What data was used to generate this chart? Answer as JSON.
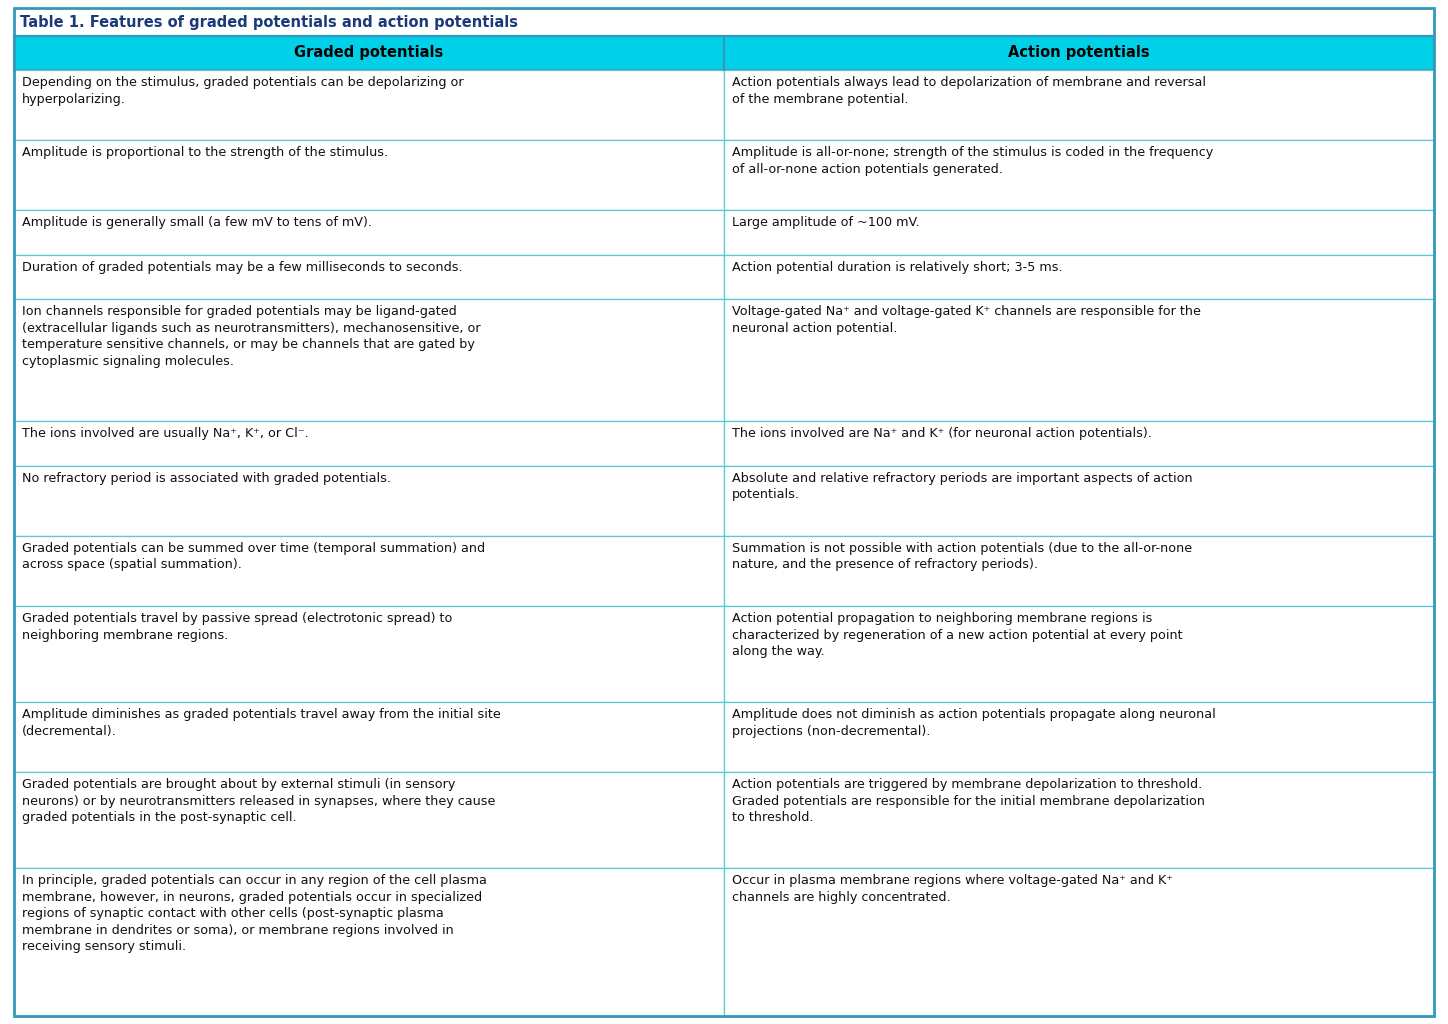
{
  "title": "Table 1. Features of graded potentials and action potentials",
  "col1_header": "Graded potentials",
  "col2_header": "Action potentials",
  "rows": [
    [
      "Depending on the stimulus, graded potentials can be depolarizing or\nhyperpolarizing.",
      "Action potentials always lead to depolarization of membrane and reversal\nof the membrane potential."
    ],
    [
      "Amplitude is proportional to the strength of the stimulus.",
      "Amplitude is all-or-none; strength of the stimulus is coded in the frequency\nof all-or-none action potentials generated."
    ],
    [
      "Amplitude is generally small (a few mV to tens of mV).",
      "Large amplitude of ~100 mV."
    ],
    [
      "Duration of graded potentials may be a few milliseconds to seconds.",
      "Action potential duration is relatively short; 3-5 ms."
    ],
    [
      "Ion channels responsible for graded potentials may be ligand-gated\n(extracellular ligands such as neurotransmitters), mechanosensitive, or\ntemperature sensitive channels, or may be channels that are gated by\ncytoplasmic signaling molecules.",
      "Voltage-gated Na⁺ and voltage-gated K⁺ channels are responsible for the\nneuronal action potential."
    ],
    [
      "The ions involved are usually Na⁺, K⁺, or Cl⁻.",
      "The ions involved are Na⁺ and K⁺ (for neuronal action potentials)."
    ],
    [
      "No refractory period is associated with graded potentials.",
      "Absolute and relative refractory periods are important aspects of action\npotentials."
    ],
    [
      "Graded potentials can be summed over time (temporal summation) and\nacross space (spatial summation).",
      "Summation is not possible with action potentials (due to the all-or-none\nnature, and the presence of refractory periods)."
    ],
    [
      "Graded potentials travel by passive spread (electrotonic spread) to\nneighboring membrane regions.",
      "Action potential propagation to neighboring membrane regions is\ncharacterized by regeneration of a new action potential at every point\nalong the way."
    ],
    [
      "Amplitude diminishes as graded potentials travel away from the initial site\n(decremental).",
      "Amplitude does not diminish as action potentials propagate along neuronal\nprojections (non-decremental)."
    ],
    [
      "Graded potentials are brought about by external stimuli (in sensory\nneurons) or by neurotransmitters released in synapses, where they cause\ngraded potentials in the post-synaptic cell.",
      "Action potentials are triggered by membrane depolarization to threshold.\nGraded potentials are responsible for the initial membrane depolarization\nto threshold."
    ],
    [
      "In principle, graded potentials can occur in any region of the cell plasma\nmembrane, however, in neurons, graded potentials occur in specialized\nregions of synaptic contact with other cells (post-synaptic plasma\nmembrane in dendrites or soma), or membrane regions involved in\nreceiving sensory stimuli.",
      "Occur in plasma membrane regions where voltage-gated Na⁺ and K⁺\nchannels are highly concentrated."
    ]
  ],
  "title_color": "#1a3a7a",
  "title_bg": "#ffffff",
  "header_bg": "#00d0e8",
  "header_text_color": "#000000",
  "row_bg_even": "#ffffff",
  "row_bg_odd": "#ffffff",
  "border_color": "#5bc8d8",
  "outer_border_color": "#3399bb",
  "title_fontsize": 10.5,
  "header_fontsize": 10.5,
  "cell_fontsize": 9.2,
  "background_color": "#ffffff",
  "row_line_counts": [
    2,
    2,
    1,
    1,
    4,
    1,
    2,
    2,
    3,
    2,
    3,
    5
  ]
}
